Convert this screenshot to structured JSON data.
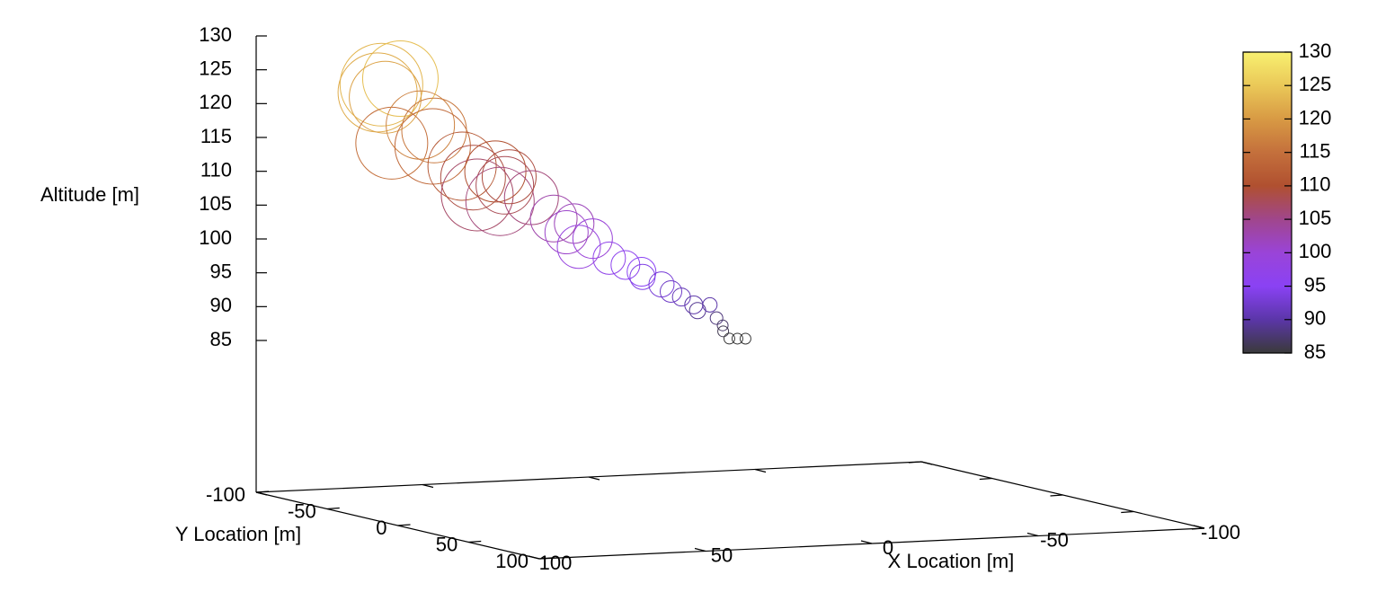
{
  "chart_data": {
    "type": "scatter3d",
    "zlabel": "Altitude [m]",
    "ylabel": "Y Location [m]",
    "xlabel": "X Location [m]",
    "xlim": [
      -100,
      100
    ],
    "ylim": [
      -100,
      100
    ],
    "zlim": [
      85,
      130
    ],
    "xticks": [
      100,
      50,
      0,
      -50,
      -100
    ],
    "yticks": [
      -100,
      -50,
      0,
      50,
      100
    ],
    "zticks": [
      85,
      90,
      95,
      100,
      105,
      110,
      115,
      120,
      125,
      130
    ],
    "cblim": [
      85,
      130
    ],
    "cbticks": [
      85,
      90,
      95,
      100,
      105,
      110,
      115,
      120,
      125,
      130
    ],
    "palette": [
      "#3a3a3a",
      "#5b36a8",
      "#8a42f4",
      "#9a44d8",
      "#a0468c",
      "#b05030",
      "#c4703c",
      "#d89a44",
      "#eac858",
      "#f8f070"
    ],
    "x": [
      70,
      66,
      72,
      68,
      72,
      60,
      58,
      55,
      50,
      45,
      48,
      40,
      38,
      42,
      35,
      30,
      25,
      22,
      18,
      15,
      20,
      10,
      6,
      2,
      0,
      -4,
      -6,
      -10,
      -12,
      -14,
      -16,
      -18,
      -19,
      -20,
      -21,
      -23,
      -25
    ],
    "y": [
      -82,
      -78,
      -80,
      -84,
      -70,
      -78,
      -74,
      -80,
      -72,
      -76,
      -66,
      -72,
      -70,
      -64,
      -74,
      -70,
      -66,
      -64,
      -68,
      -62,
      -60,
      -62,
      -60,
      -58,
      -62,
      -58,
      -56,
      -58,
      -54,
      -56,
      -52,
      -52,
      -50,
      -52,
      -50,
      -49,
      -48
    ],
    "z": [
      123,
      124,
      122,
      121,
      115,
      117,
      114,
      116,
      111,
      109,
      107,
      110,
      108,
      106,
      109,
      106,
      103,
      101,
      102,
      100,
      99,
      97,
      96,
      95,
      94,
      93,
      92,
      91,
      90,
      89,
      90,
      88,
      87,
      86,
      85,
      85,
      85
    ],
    "size": [
      46,
      42,
      44,
      40,
      40,
      38,
      42,
      36,
      38,
      36,
      40,
      34,
      32,
      38,
      30,
      30,
      26,
      24,
      22,
      22,
      24,
      18,
      16,
      16,
      14,
      14,
      12,
      10,
      10,
      9,
      8,
      7,
      6,
      6,
      6,
      6,
      6
    ]
  }
}
